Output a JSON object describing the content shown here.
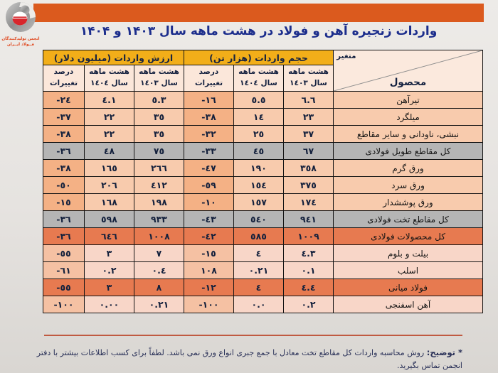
{
  "header": {
    "title": "واردات زنجیره آهن و فولاد در هشت ماهه سال ۱۴۰۳ و ۱۴۰۴",
    "banner_color": "#db5a1e",
    "logo": {
      "org_line1": "انجمن تولیدکنندگان",
      "org_line2": "فــولاد ایــران"
    }
  },
  "table": {
    "corner": {
      "top_label": "متغیر",
      "bottom_label": "محصول"
    },
    "groups": {
      "volume": "حجم واردات (هزار تن)",
      "value": "ارزش واردات (میلیون دلار)"
    },
    "subheaders": {
      "y1403": {
        "line1": "هشت ماهه",
        "line2": "سال ١٤٠٣"
      },
      "y1404": {
        "line1": "هشت ماهه",
        "line2": "سال ١٤٠٤"
      },
      "pct": "درصد تغییرات"
    },
    "rows": [
      {
        "style": "normal",
        "product": "تیرآهن",
        "volume_1403": "٦.٦",
        "volume_1404": "٥.٥",
        "volume_change_pct": "-١٦",
        "value_1403": "٥.٣",
        "value_1404": "٤.١",
        "value_change_pct": "-٢٤"
      },
      {
        "style": "normal",
        "product": "میلگرد",
        "volume_1403": "٢٣",
        "volume_1404": "١٤",
        "volume_change_pct": "-٣٨",
        "value_1403": "٣٥",
        "value_1404": "٢٢",
        "value_change_pct": "-٣٧"
      },
      {
        "style": "normal",
        "product": "نبشی، ناودانی و سایر مقاطع",
        "volume_1403": "٣٧",
        "volume_1404": "٢٥",
        "volume_change_pct": "-٣٢",
        "value_1403": "٣٥",
        "value_1404": "٢٢",
        "value_change_pct": "-٣٨"
      },
      {
        "style": "gray",
        "product": "کل مقاطع طویل فولادی",
        "volume_1403": "٦٧",
        "volume_1404": "٤٥",
        "volume_change_pct": "-٣٣",
        "value_1403": "٧٥",
        "value_1404": "٤٨",
        "value_change_pct": "-٣٦"
      },
      {
        "style": "normal",
        "product": "ورق گرم",
        "volume_1403": "٣٥٨",
        "volume_1404": "١٩٠",
        "volume_change_pct": "-٤٧",
        "value_1403": "٢٦٦",
        "value_1404": "١٦٥",
        "value_change_pct": "-٣٨"
      },
      {
        "style": "normal",
        "product": "ورق سرد",
        "volume_1403": "٣٧٥",
        "volume_1404": "١٥٤",
        "volume_change_pct": "-٥٩",
        "value_1403": "٤١٢",
        "value_1404": "٢٠٦",
        "value_change_pct": "-٥٠"
      },
      {
        "style": "normal",
        "product": "ورق پوششدار",
        "volume_1403": "١٧٤",
        "volume_1404": "١٥٧",
        "volume_change_pct": "-١٠",
        "value_1403": "١٩٨",
        "value_1404": "١٦٨",
        "value_change_pct": "-١٥"
      },
      {
        "style": "gray",
        "product": "کل مقاطع تخت فولادی",
        "volume_1403": "٩٤١",
        "volume_1404": "٥٤٠",
        "volume_change_pct": "-٤٣",
        "value_1403": "٩٣٣",
        "value_1404": "٥٩٨",
        "value_change_pct": "-٣٦"
      },
      {
        "style": "orange",
        "product": "کل محصولات فولادی",
        "volume_1403": "١٠٠٩",
        "volume_1404": "٥٨٥",
        "volume_change_pct": "-٤٢",
        "value_1403": "١٠٠٨",
        "value_1404": "٦٤٦",
        "value_change_pct": "-٣٦"
      },
      {
        "style": "light",
        "product": "بیلت و بلوم",
        "volume_1403": "٤.٣",
        "volume_1404": "٤",
        "volume_change_pct": "-١٥",
        "value_1403": "٧",
        "value_1404": "٣",
        "value_change_pct": "-٥٥"
      },
      {
        "style": "light",
        "product": "اسلب",
        "volume_1403": "٠.١",
        "volume_1404": "٠.٢١",
        "volume_change_pct": "١٠٨",
        "value_1403": "٠.٤",
        "value_1404": "٠.٢",
        "value_change_pct": "-٦١"
      },
      {
        "style": "orange",
        "product": "فولاد میانی",
        "volume_1403": "٤.٤",
        "volume_1404": "٤",
        "volume_change_pct": "-١٢",
        "value_1403": "٨",
        "value_1404": "٣",
        "value_change_pct": "-٥٥"
      },
      {
        "style": "light",
        "product": "آهن اسفنجی",
        "volume_1403": "٠.٢",
        "volume_1404": "٠.٠",
        "volume_change_pct": "-١٠٠",
        "value_1403": "٠.٢١",
        "value_1404": "٠.٠٠",
        "value_change_pct": "-١٠٠"
      }
    ]
  },
  "footnote": {
    "label": "* توضیح:",
    "text": "روش محاسبه واردات کل مقاطع تخت معادل با جمع جبری انواع ورق نمی باشد. لطفاً برای کسب اطلاعات بیشتر با دفتر انجمن تماس بگیرید."
  },
  "colors": {
    "banner": "#db5a1e",
    "group_header": "#f2ae19",
    "subheader": "#fbe7da",
    "row_normal": "#f8cbad",
    "row_normal_pct": "#f4b185",
    "row_light": "#f8d6c8",
    "row_gray": "#b5b5b5",
    "row_orange": "#e77a50",
    "title_text": "#1b2d8c",
    "separator": "#c05a42"
  },
  "chart_data": {
    "type": "table",
    "title": "واردات زنجیره آهن و فولاد در هشت ماهه سال ۱۴۰۳ و ۱۴۰۴",
    "columns": [
      "محصول",
      "حجم واردات هشت ماهه سال ۱۴۰۳ (هزار تن)",
      "حجم واردات هشت ماهه سال ۱۴۰۴ (هزار تن)",
      "درصد تغییرات حجم",
      "ارزش واردات هشت ماهه سال ۱۴۰۳ (میلیون دلار)",
      "ارزش واردات هشت ماهه سال ۱۴۰۴ (میلیون دلار)",
      "درصد تغییرات ارزش"
    ],
    "rows": [
      [
        "تیرآهن",
        6.6,
        5.5,
        -16,
        5.3,
        4.1,
        -24
      ],
      [
        "میلگرد",
        23,
        14,
        -38,
        35,
        22,
        -37
      ],
      [
        "نبشی، ناودانی و سایر مقاطع",
        37,
        25,
        -32,
        35,
        22,
        -38
      ],
      [
        "کل مقاطع طویل فولادی",
        67,
        45,
        -33,
        75,
        48,
        -36
      ],
      [
        "ورق گرم",
        358,
        190,
        -47,
        266,
        165,
        -38
      ],
      [
        "ورق سرد",
        375,
        154,
        -59,
        412,
        206,
        -50
      ],
      [
        "ورق پوششدار",
        174,
        157,
        -10,
        198,
        168,
        -15
      ],
      [
        "کل مقاطع تخت فولادی",
        941,
        540,
        -43,
        933,
        598,
        -36
      ],
      [
        "کل محصولات فولادی",
        1009,
        585,
        -42,
        1008,
        646,
        -36
      ],
      [
        "بیلت و بلوم",
        4.3,
        4,
        -15,
        7,
        3,
        -55
      ],
      [
        "اسلب",
        0.1,
        0.21,
        108,
        0.4,
        0.2,
        -61
      ],
      [
        "فولاد میانی",
        4.4,
        4,
        -12,
        8,
        3,
        -55
      ],
      [
        "آهن اسفنجی",
        0.2,
        0.0,
        -100,
        0.21,
        0.0,
        -100
      ]
    ]
  }
}
